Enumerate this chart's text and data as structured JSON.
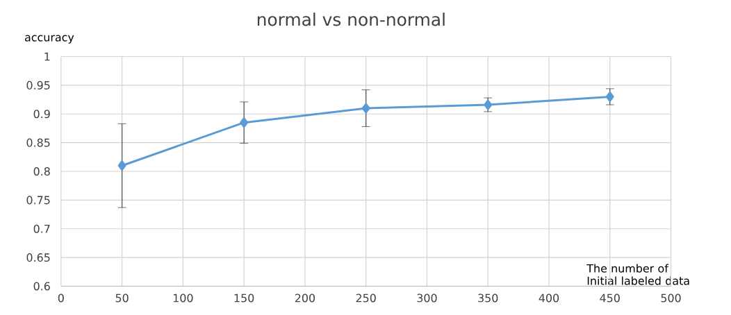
{
  "chart_data": {
    "type": "line",
    "title": "normal vs non-normal",
    "xlabel": "The number of Initial labeled data",
    "ylabel": "accuracy",
    "x": [
      50,
      150,
      250,
      350,
      450
    ],
    "series": [
      {
        "color": "#5b9bd5",
        "values": [
          0.81,
          0.885,
          0.91,
          0.916,
          0.93
        ],
        "errors": [
          0.073,
          0.036,
          0.032,
          0.012,
          0.014
        ]
      }
    ],
    "xlim": [
      0,
      500
    ],
    "xticks": [
      0,
      50,
      100,
      150,
      200,
      250,
      300,
      350,
      400,
      450,
      500
    ],
    "ylim": [
      0.6,
      1
    ],
    "yticks": [
      0.6,
      0.65,
      0.7,
      0.75,
      0.8,
      0.85,
      0.9,
      0.95,
      1
    ],
    "grid": true,
    "marker": "diamond",
    "line_style": "solid"
  }
}
